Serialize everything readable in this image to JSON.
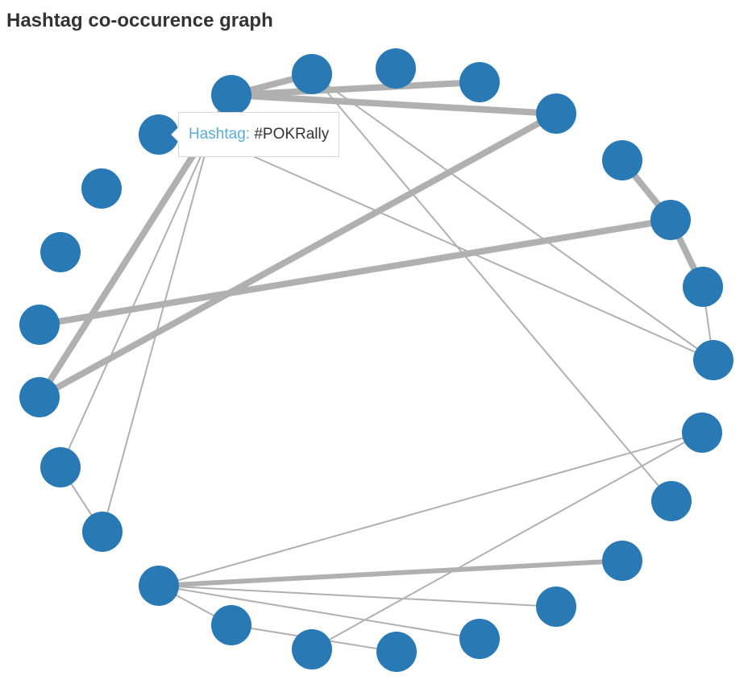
{
  "title": "Hashtag co-occurence graph",
  "colors": {
    "node": "#2979b5",
    "edge": "#b0b0b0",
    "tooltip_key": "#5aacdc",
    "tooltip_value": "#333333"
  },
  "tooltip": {
    "key": "Hashtag:",
    "value": "#POKRally"
  },
  "graph": {
    "node_count": 27,
    "hovered_node": 1,
    "edges": [
      {
        "source": 0,
        "target": 3,
        "weight": 4
      },
      {
        "source": 0,
        "target": 6,
        "weight": 4
      },
      {
        "source": 0,
        "target": 2,
        "weight": 4
      },
      {
        "source": 5,
        "target": 11,
        "weight": 4
      },
      {
        "source": 15,
        "target": 8,
        "weight": 4
      },
      {
        "source": 7,
        "target": 16,
        "weight": 4
      },
      {
        "source": 4,
        "target": 5,
        "weight": 4
      },
      {
        "source": 5,
        "target": 6,
        "weight": 4
      },
      {
        "source": 0,
        "target": 26,
        "weight": 3
      },
      {
        "source": 1,
        "target": 24,
        "weight": 1
      },
      {
        "source": 1,
        "target": 25,
        "weight": 1
      },
      {
        "source": 1,
        "target": 7,
        "weight": 1
      },
      {
        "source": 2,
        "target": 13,
        "weight": 1
      },
      {
        "source": 25,
        "target": 24,
        "weight": 1
      },
      {
        "source": 6,
        "target": 7,
        "weight": 1
      },
      {
        "source": 18,
        "target": 10,
        "weight": 1
      },
      {
        "source": 18,
        "target": 9,
        "weight": 1
      },
      {
        "source": 18,
        "target": 12,
        "weight": 1
      },
      {
        "source": 18,
        "target": 14,
        "weight": 1
      },
      {
        "source": 18,
        "target": 17,
        "weight": 1
      },
      {
        "source": 17,
        "target": 14,
        "weight": 1
      },
      {
        "source": 16,
        "target": 9,
        "weight": 1
      }
    ]
  }
}
